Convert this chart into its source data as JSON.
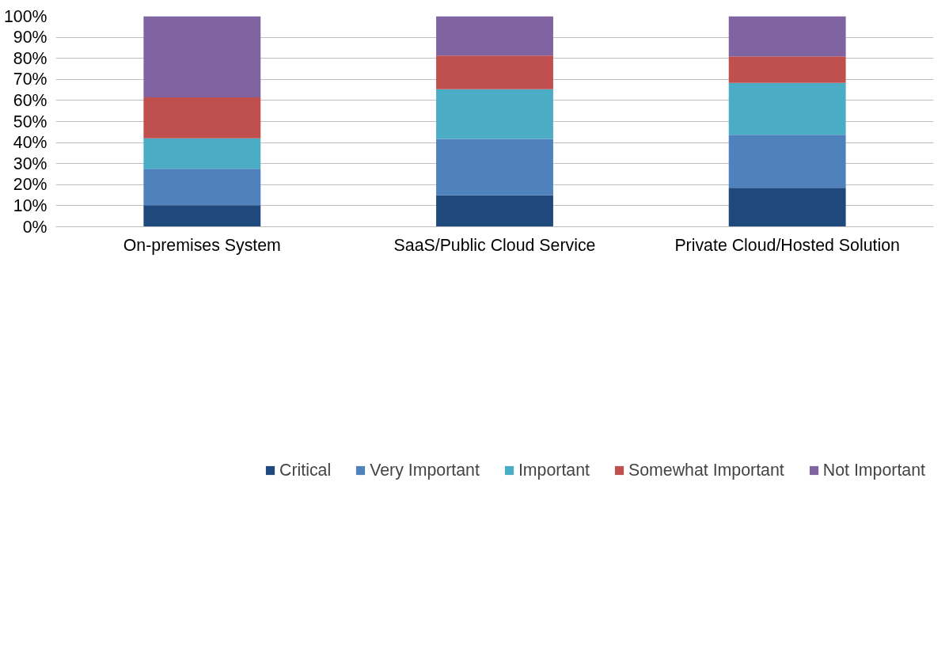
{
  "chart_data": {
    "type": "bar",
    "stacked": true,
    "categories": [
      "On-premises System",
      "SaaS/Public Cloud Service",
      "Private Cloud/Hosted Solution"
    ],
    "series": [
      {
        "name": "Critical",
        "color": "#1f497d",
        "values": [
          10.2,
          14.9,
          18.5
        ]
      },
      {
        "name": "Very Important",
        "color": "#4f81bd",
        "values": [
          17.3,
          26.8,
          25.2
        ]
      },
      {
        "name": "Important",
        "color": "#4bacc6",
        "values": [
          14.5,
          23.6,
          24.6
        ]
      },
      {
        "name": "Somewhat Important",
        "color": "#c0504d",
        "values": [
          19.5,
          16.0,
          12.6
        ]
      },
      {
        "name": "Not Important",
        "color": "#8064a2",
        "values": [
          38.5,
          18.7,
          19.1
        ]
      }
    ],
    "ylim": [
      0,
      100
    ],
    "yticks": [
      {
        "value": 0,
        "label": "0%"
      },
      {
        "value": 10,
        "label": "10%"
      },
      {
        "value": 20,
        "label": "20%"
      },
      {
        "value": 30,
        "label": "30%"
      },
      {
        "value": 40,
        "label": "40%"
      },
      {
        "value": 50,
        "label": "50%"
      },
      {
        "value": 60,
        "label": "60%"
      },
      {
        "value": 70,
        "label": "70%"
      },
      {
        "value": 80,
        "label": "80%"
      },
      {
        "value": 90,
        "label": "90%"
      },
      {
        "value": 100,
        "label": "100%"
      }
    ],
    "grid": "y",
    "legend": "bottom"
  }
}
